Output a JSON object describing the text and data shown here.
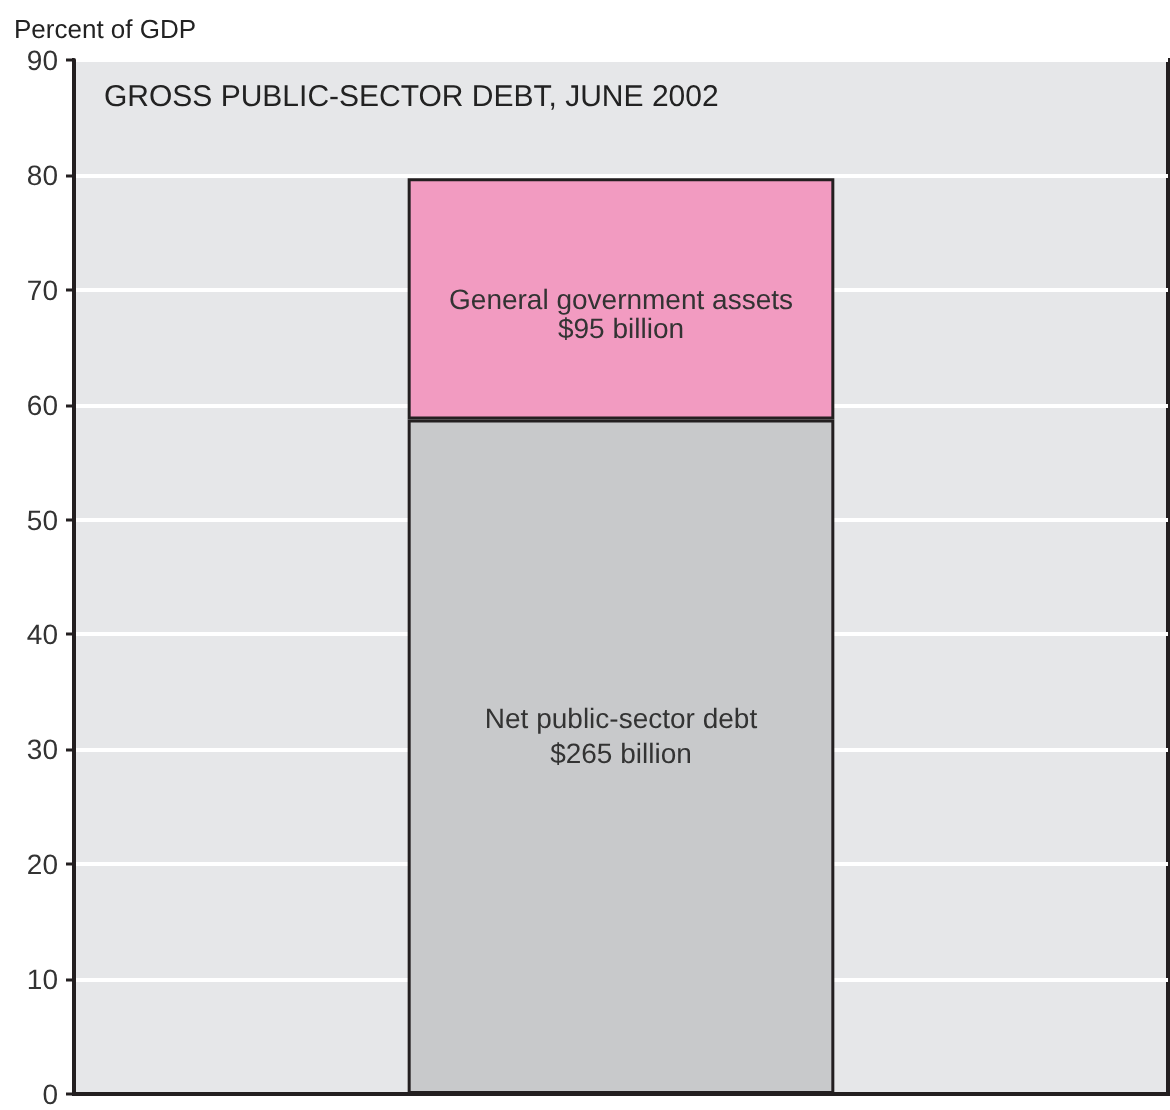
{
  "chart_data": {
    "type": "bar",
    "title": "GROSS PUBLIC-SECTOR DEBT, JUNE 2002",
    "ylabel": "Percent of GDP",
    "categories": [
      null
    ],
    "stacked": true,
    "series": [
      {
        "name": "Net public-sector debt",
        "color": "#c8c9cb",
        "values": [
          58.7
        ]
      },
      {
        "name": "General government assets",
        "color": "#f29bc1",
        "values": [
          21.0
        ]
      }
    ],
    "annotations": [
      "$265 billion",
      "$95 billion"
    ],
    "ylim": [
      0,
      90
    ],
    "yticks": [
      0,
      10,
      20,
      30,
      40,
      50,
      60,
      70,
      80,
      90
    ],
    "grid": "y"
  }
}
